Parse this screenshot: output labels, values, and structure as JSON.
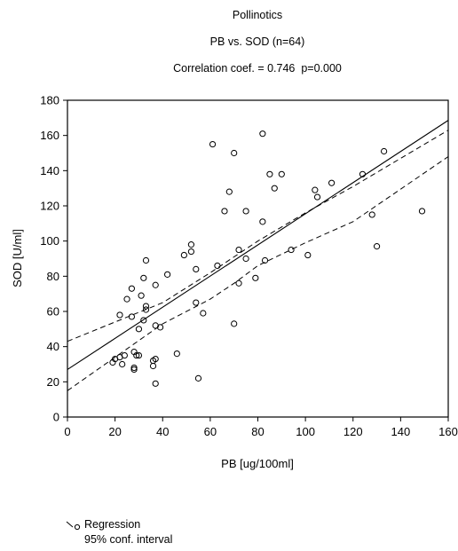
{
  "chart_data": {
    "type": "scatter",
    "title": "Pollinotics",
    "subtitle": "PB vs. SOD (n=64)",
    "annotation": "Correlation coef. = 0.746  p=0.000",
    "xlabel": "PB [ug/100ml]",
    "ylabel": "SOD [U/ml]",
    "xlim": [
      0,
      160
    ],
    "ylim": [
      0,
      180
    ],
    "x_ticks": [
      0,
      20,
      40,
      60,
      80,
      100,
      120,
      140,
      160
    ],
    "y_ticks": [
      0,
      20,
      40,
      60,
      80,
      100,
      120,
      140,
      160,
      180
    ],
    "grid": false,
    "legend": {
      "position": "bottom-left",
      "entries": [
        "Regression",
        "95% conf. interval"
      ]
    },
    "regression": {
      "intercept": 27,
      "slope": 0.885
    },
    "ci_upper": [
      [
        0,
        43
      ],
      [
        40,
        65
      ],
      [
        60,
        82
      ],
      [
        70,
        91
      ],
      [
        80,
        100
      ],
      [
        100,
        116
      ],
      [
        120,
        131
      ],
      [
        160,
        163
      ]
    ],
    "ci_lower": [
      [
        0,
        15
      ],
      [
        40,
        53
      ],
      [
        60,
        67
      ],
      [
        70,
        76
      ],
      [
        80,
        86
      ],
      [
        100,
        99
      ],
      [
        120,
        111
      ],
      [
        160,
        148
      ]
    ],
    "points": [
      [
        19,
        31
      ],
      [
        20,
        33
      ],
      [
        22,
        34
      ],
      [
        22,
        58
      ],
      [
        23,
        30
      ],
      [
        24,
        35
      ],
      [
        25,
        67
      ],
      [
        27,
        57
      ],
      [
        27,
        73
      ],
      [
        28,
        28
      ],
      [
        28,
        27
      ],
      [
        28,
        37
      ],
      [
        29,
        35
      ],
      [
        30,
        35
      ],
      [
        30,
        50
      ],
      [
        31,
        69
      ],
      [
        32,
        79
      ],
      [
        32,
        55
      ],
      [
        33,
        61
      ],
      [
        33,
        63
      ],
      [
        33,
        89
      ],
      [
        36,
        29
      ],
      [
        36,
        32
      ],
      [
        37,
        33
      ],
      [
        37,
        19
      ],
      [
        37,
        75
      ],
      [
        37,
        52
      ],
      [
        39,
        51
      ],
      [
        42,
        81
      ],
      [
        46,
        36
      ],
      [
        49,
        92
      ],
      [
        52,
        94
      ],
      [
        52,
        98
      ],
      [
        54,
        84
      ],
      [
        54,
        65
      ],
      [
        55,
        22
      ],
      [
        57,
        59
      ],
      [
        61,
        155
      ],
      [
        63,
        86
      ],
      [
        66,
        117
      ],
      [
        68,
        128
      ],
      [
        70,
        150
      ],
      [
        70,
        53
      ],
      [
        72,
        76
      ],
      [
        72,
        95
      ],
      [
        75,
        117
      ],
      [
        75,
        90
      ],
      [
        79,
        79
      ],
      [
        82,
        161
      ],
      [
        82,
        111
      ],
      [
        83,
        89
      ],
      [
        85,
        138
      ],
      [
        87,
        130
      ],
      [
        90,
        138
      ],
      [
        94,
        95
      ],
      [
        101,
        92
      ],
      [
        104,
        129
      ],
      [
        105,
        125
      ],
      [
        111,
        133
      ],
      [
        124,
        138
      ],
      [
        128,
        115
      ],
      [
        130,
        97
      ],
      [
        133,
        151
      ],
      [
        149,
        117
      ]
    ]
  }
}
